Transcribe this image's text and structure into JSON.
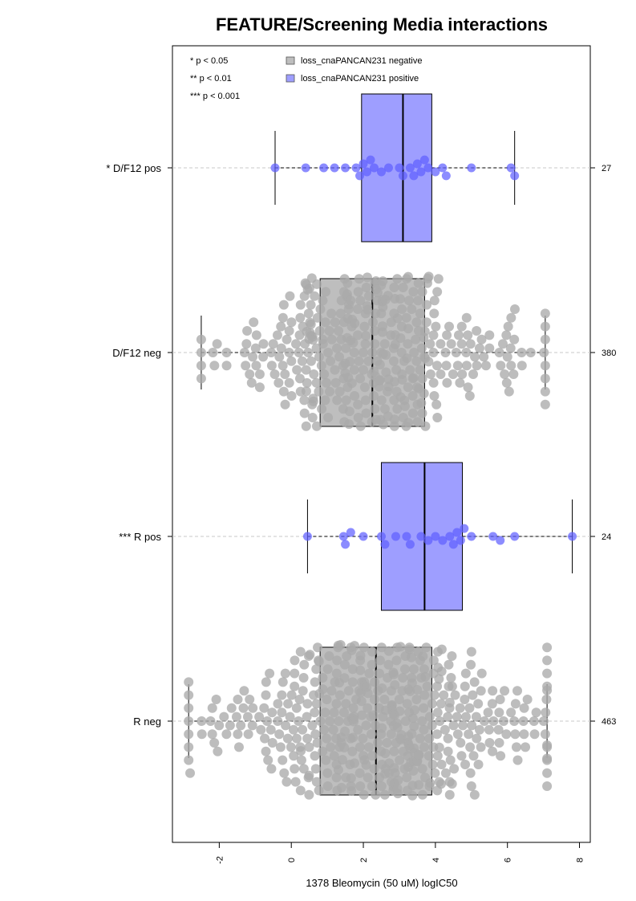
{
  "chart_data": {
    "type": "box-beeswarm",
    "title": "FEATURE/Screening Media interactions",
    "xlabel": "1378 Bleomycin (50 uM) logIC50",
    "xlim": [
      -3.3,
      8.3
    ],
    "xticks": [
      -2,
      0,
      2,
      4,
      6,
      8
    ],
    "xtick_labels": [
      "-2",
      "0",
      "2",
      "4",
      "6",
      "8"
    ],
    "significance_legend": [
      "* p < 0.05",
      "** p < 0.01",
      "*** p < 0.001"
    ],
    "legend": [
      {
        "label": "loss_cnaPANCAN231 negative",
        "color": "#bebebe"
      },
      {
        "label": "loss_cnaPANCAN231 positive",
        "color": "#9e9eff"
      }
    ],
    "groups": [
      {
        "label": "* D/F12 pos",
        "n": "27",
        "status": "positive",
        "whisker_low": -0.45,
        "q1": 1.95,
        "median": 3.1,
        "q3": 3.9,
        "whisker_high": 6.2,
        "points": [
          -0.45,
          0.4,
          0.9,
          1.2,
          1.5,
          1.8,
          1.9,
          2.0,
          2.1,
          2.2,
          2.3,
          2.5,
          2.7,
          3.0,
          3.1,
          3.3,
          3.4,
          3.5,
          3.6,
          3.7,
          3.8,
          4.0,
          4.2,
          4.3,
          5.0,
          6.1,
          6.2
        ]
      },
      {
        "label": "D/F12 neg",
        "n": "380",
        "status": "negative",
        "whisker_low": -2.5,
        "q1": 0.8,
        "median": 2.25,
        "q3": 3.7,
        "whisker_high": 7.05,
        "points": []
      },
      {
        "label": "*** R pos",
        "n": "24",
        "status": "positive",
        "whisker_low": 0.45,
        "q1": 2.5,
        "median": 3.7,
        "q3": 4.75,
        "whisker_high": 7.8,
        "points": [
          0.45,
          1.45,
          1.5,
          1.65,
          2.0,
          2.5,
          2.6,
          2.9,
          3.2,
          3.3,
          3.6,
          3.8,
          4.0,
          4.2,
          4.4,
          4.5,
          4.6,
          4.7,
          4.8,
          5.0,
          5.6,
          5.8,
          6.2,
          7.8
        ]
      },
      {
        "label": "R neg",
        "n": "463",
        "status": "negative",
        "whisker_low": -2.85,
        "q1": 0.8,
        "median": 2.35,
        "q3": 3.9,
        "whisker_high": 7.1,
        "points": []
      }
    ]
  }
}
